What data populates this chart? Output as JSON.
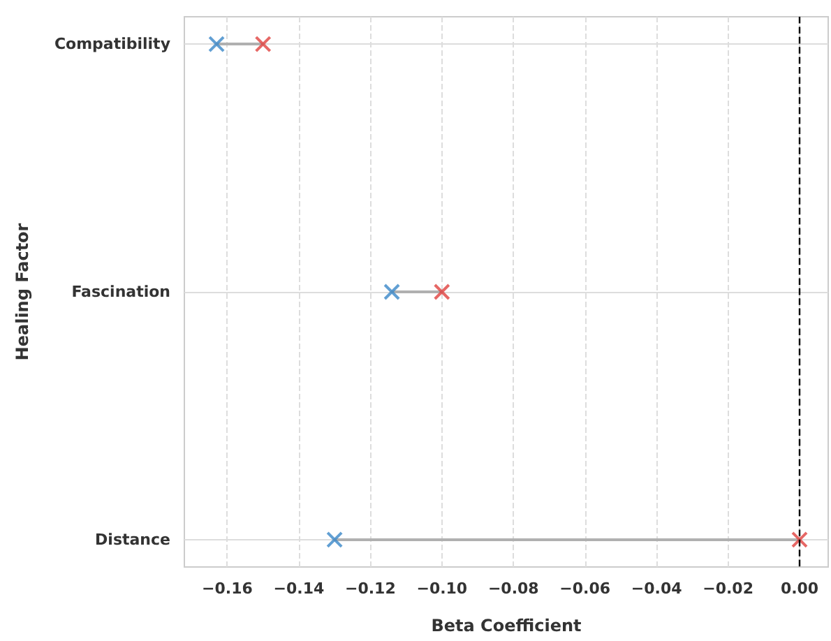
{
  "chart_data": {
    "type": "scatter",
    "orientation": "horizontal",
    "xlabel": "Beta Coefficient",
    "ylabel": "Healing Factor",
    "categories": [
      "Compatibility",
      "Fascination",
      "Distance"
    ],
    "series": [
      {
        "color": "#3a87c8",
        "values": [
          -0.163,
          -0.114,
          -0.13
        ]
      },
      {
        "color": "#e0413f",
        "values": [
          -0.15,
          -0.1,
          0.0
        ]
      }
    ],
    "xlim": [
      -0.172,
      0.008
    ],
    "xticks": [
      {
        "value": -0.16,
        "label": "−0.16"
      },
      {
        "value": -0.14,
        "label": "−0.14"
      },
      {
        "value": -0.12,
        "label": "−0.12"
      },
      {
        "value": -0.1,
        "label": "−0.10"
      },
      {
        "value": -0.08,
        "label": "−0.08"
      },
      {
        "value": -0.06,
        "label": "−0.06"
      },
      {
        "value": -0.04,
        "label": "−0.04"
      },
      {
        "value": -0.02,
        "label": "−0.02"
      },
      {
        "value": 0,
        "label": "0.00"
      }
    ],
    "ref_lines": [
      {
        "axis": "x",
        "value": 0,
        "color": "#000000",
        "line_style": "dashed"
      }
    ],
    "grid": true,
    "marker": "cross"
  }
}
